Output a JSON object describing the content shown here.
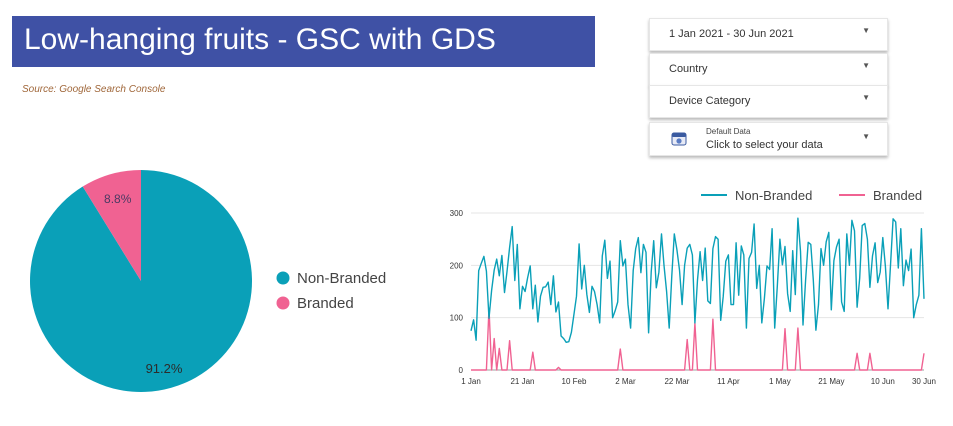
{
  "report": {
    "title": "Low-hanging fruits - GSC with GDS",
    "source": "Source: Google Search Console"
  },
  "controls": {
    "date_range": "1 Jan 2021 - 30 Jun 2021",
    "country": "Country",
    "device": "Device Category",
    "data_source_small": "Default Data",
    "data_source_main": "Click to select your data"
  },
  "colors": {
    "non_branded": "#0aa0b8",
    "branded": "#f06292",
    "title_bg": "#3f51a5"
  },
  "chart_data": [
    {
      "type": "pie",
      "labels": [
        "Non-Branded",
        "Branded"
      ],
      "values": [
        91.2,
        8.8
      ],
      "data_labels": [
        "91.2%",
        "8.8%"
      ],
      "legend": "right"
    },
    {
      "type": "line",
      "legend": "top-right",
      "ylim": [
        0,
        300
      ],
      "yticks": [
        "0",
        "100",
        "200",
        "300"
      ],
      "xticks": [
        "1 Jan",
        "21 Jan",
        "10 Feb",
        "2 Mar",
        "22 Mar",
        "11 Apr",
        "1 May",
        "21 May",
        "10 Jun",
        "30 Jun"
      ],
      "grid": true,
      "series": [
        {
          "name": "Non-Branded",
          "values": [
            75,
            96,
            57,
            190,
            204,
            217,
            189,
            99,
            152,
            191,
            212,
            180,
            219,
            148,
            188,
            234,
            274,
            171,
            240,
            117,
            160,
            150,
            176,
            199,
            117,
            162,
            92,
            141,
            158,
            159,
            168,
            125,
            180,
            111,
            130,
            65,
            60,
            53,
            54,
            72,
            107,
            141,
            241,
            155,
            200,
            145,
            110,
            160,
            150,
            125,
            90,
            218,
            248,
            175,
            208,
            100,
            113,
            130,
            247,
            199,
            212,
            125,
            80,
            190,
            232,
            253,
            186,
            240,
            225,
            71,
            187,
            247,
            157,
            187,
            260,
            200,
            150,
            80,
            180,
            260,
            230,
            191,
            125,
            200,
            233,
            240,
            220,
            90,
            172,
            226,
            171,
            233,
            132,
            127,
            232,
            255,
            250,
            95,
            140,
            208,
            220,
            125,
            125,
            243,
            143,
            237,
            220,
            80,
            213,
            225,
            279,
            156,
            200,
            90,
            137,
            199,
            192,
            270,
            80,
            160,
            250,
            201,
            236,
            146,
            112,
            228,
            144,
            290,
            227,
            86,
            172,
            244,
            240,
            172,
            76,
            125,
            232,
            200,
            245,
            263,
            115,
            209,
            235,
            250,
            130,
            112,
            260,
            200,
            286,
            266,
            120,
            176,
            276,
            280,
            250,
            158,
            218,
            243,
            167,
            187,
            253,
            198,
            117,
            200,
            289,
            283,
            195,
            270,
            161,
            210,
            190,
            231,
            100,
            125,
            143,
            270,
            136
          ]
        },
        {
          "name": "Branded",
          "values": [
            0,
            0,
            0,
            0,
            0,
            0,
            0,
            118,
            0,
            60,
            0,
            41,
            0,
            0,
            0,
            56,
            0,
            0,
            0,
            0,
            0,
            0,
            0,
            0,
            34,
            0,
            0,
            0,
            0,
            0,
            0,
            0,
            0,
            0,
            5,
            0,
            0,
            0,
            0,
            0,
            0,
            0,
            0,
            0,
            0,
            0,
            0,
            0,
            0,
            0,
            0,
            0,
            0,
            0,
            0,
            0,
            0,
            0,
            40,
            0,
            0,
            0,
            0,
            0,
            0,
            0,
            0,
            0,
            0,
            0,
            0,
            0,
            0,
            0,
            0,
            0,
            0,
            0,
            0,
            0,
            0,
            0,
            0,
            0,
            58,
            0,
            0,
            90,
            0,
            0,
            0,
            0,
            0,
            0,
            97,
            0,
            0,
            0,
            0,
            0,
            0,
            0,
            0,
            0,
            0,
            0,
            0,
            0,
            0,
            0,
            0,
            0,
            0,
            0,
            0,
            0,
            0,
            0,
            0,
            0,
            0,
            0,
            79,
            0,
            0,
            0,
            0,
            80,
            0,
            0,
            0,
            0,
            0,
            0,
            0,
            0,
            0,
            0,
            0,
            0,
            0,
            0,
            0,
            0,
            0,
            0,
            0,
            0,
            0,
            0,
            32,
            0,
            0,
            0,
            0,
            32,
            0,
            0,
            0,
            0,
            0,
            0,
            0,
            0,
            0,
            0,
            0,
            0,
            0,
            0,
            0,
            0,
            0,
            0,
            0,
            0,
            32
          ]
        }
      ]
    }
  ]
}
